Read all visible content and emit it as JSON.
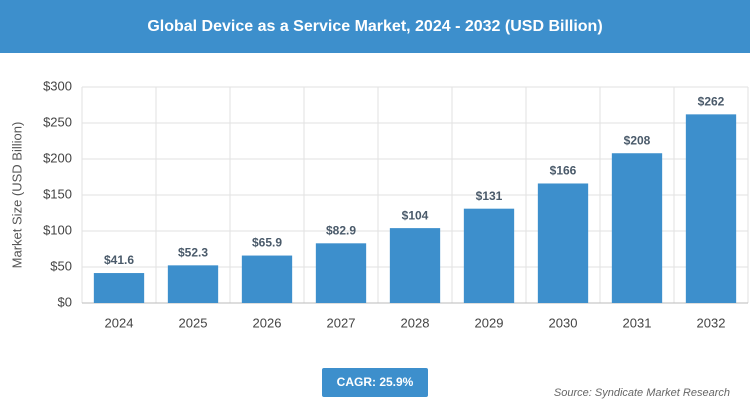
{
  "chart_data": {
    "type": "bar",
    "title": "Global Device as a Service Market, 2024 - 2032 (USD Billion)",
    "y_label": "Market Size (USD Billion)",
    "categories": [
      "2024",
      "2025",
      "2026",
      "2027",
      "2028",
      "2029",
      "2030",
      "2031",
      "2032"
    ],
    "values": [
      41.6,
      52.3,
      65.9,
      82.9,
      104,
      131,
      166,
      208,
      262
    ],
    "value_labels": [
      "$41.6",
      "$52.3",
      "$65.9",
      "$82.9",
      "$104",
      "$131",
      "$166",
      "$208",
      "$262"
    ],
    "color": "#3d8fcc",
    "ylim": [
      0,
      300
    ],
    "yticks": [
      {
        "value": 0,
        "label": "$0"
      },
      {
        "value": 50,
        "label": "$50"
      },
      {
        "value": 100,
        "label": "$100"
      },
      {
        "value": 150,
        "label": "$150"
      },
      {
        "value": 200,
        "label": "$200"
      },
      {
        "value": 250,
        "label": "$250"
      },
      {
        "value": 300,
        "label": "$300"
      }
    ],
    "grid": true,
    "cagr": "CAGR: 25.9%",
    "source": "Source: Syndicate Market Research"
  }
}
